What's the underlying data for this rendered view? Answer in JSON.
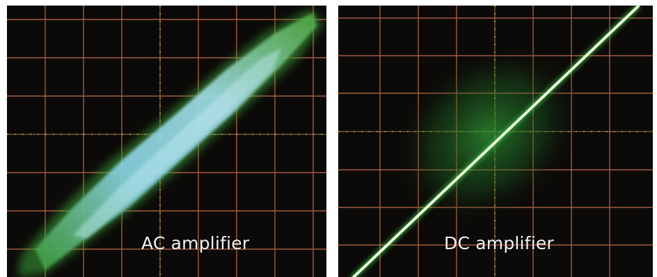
{
  "panels": [
    {
      "caption": "AC amplifier",
      "trace_shape": "wide diagonal band",
      "trace_color": "#6fd0e8",
      "glow_color": "#3fa83a"
    },
    {
      "caption": "DC amplifier",
      "trace_shape": "thin diagonal line",
      "trace_color": "#f2ffd8",
      "glow_color": "#1f8a2a"
    }
  ],
  "colors": {
    "screen_background": "#0c0a08",
    "graticule": "#c06a48",
    "graticule_axis": "#d4a85a"
  }
}
